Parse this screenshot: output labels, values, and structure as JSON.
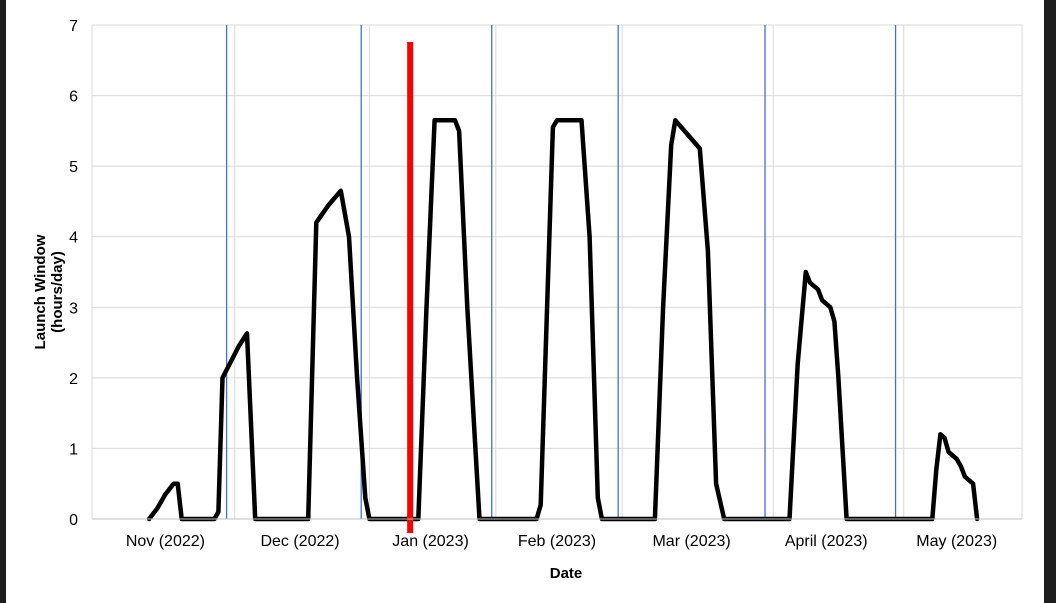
{
  "chart_data": {
    "type": "line",
    "title": "",
    "xlabel": "Date",
    "ylabel": "Launch Window (hours/day)",
    "ylim": [
      0,
      7
    ],
    "yticks": [
      0,
      1,
      2,
      3,
      4,
      5,
      6,
      7
    ],
    "grid": true,
    "xlim": [
      "2022-10-15",
      "2023-05-31"
    ],
    "categories": [
      "Nov (2022)",
      "Dec (2022)",
      "Jan (2023)",
      "Feb (2023)",
      "Mar (2023)",
      "April (2023)",
      "May (2023)"
    ],
    "category_centers": [
      "2022-11-02",
      "2022-12-05",
      "2023-01-06",
      "2023-02-06",
      "2023-03-11",
      "2023-04-13",
      "2023-05-15"
    ],
    "category_gridlines": [
      "2022-11-19",
      "2022-12-22",
      "2023-01-22",
      "2023-02-22",
      "2023-03-31",
      "2023-05-02"
    ],
    "vertical_markers": [
      "2022-11-17",
      "2022-12-20",
      "2023-01-21",
      "2023-02-21",
      "2023-03-29",
      "2023-04-30"
    ],
    "highlight_line": {
      "x": "2023-01-01",
      "color": "#ff0000"
    },
    "series": [
      {
        "name": "",
        "color": "#000000",
        "points": [
          [
            "2022-10-29",
            0
          ],
          [
            "2022-10-31",
            0.15
          ],
          [
            "2022-11-02",
            0.35
          ],
          [
            "2022-11-04",
            0.5
          ],
          [
            "2022-11-05",
            0.5
          ],
          [
            "2022-11-06",
            0
          ],
          [
            "2022-11-14",
            0
          ],
          [
            "2022-11-15",
            0.1
          ],
          [
            "2022-11-16",
            2.0
          ],
          [
            "2022-11-20",
            2.45
          ],
          [
            "2022-11-22",
            2.63
          ],
          [
            "2022-11-24",
            0
          ],
          [
            "2022-12-07",
            0
          ],
          [
            "2022-12-09",
            4.2
          ],
          [
            "2022-12-12",
            4.45
          ],
          [
            "2022-12-15",
            4.65
          ],
          [
            "2022-12-17",
            4.0
          ],
          [
            "2022-12-19",
            2.0
          ],
          [
            "2022-12-21",
            0.3
          ],
          [
            "2022-12-22",
            0
          ],
          [
            "2023-01-03",
            0
          ],
          [
            "2023-01-05",
            3.0
          ],
          [
            "2023-01-07",
            5.65
          ],
          [
            "2023-01-12",
            5.65
          ],
          [
            "2023-01-13",
            5.5
          ],
          [
            "2023-01-15",
            3.0
          ],
          [
            "2023-01-17",
            1.0
          ],
          [
            "2023-01-18",
            0
          ],
          [
            "2023-02-01",
            0
          ],
          [
            "2023-02-02",
            0.2
          ],
          [
            "2023-02-05",
            5.55
          ],
          [
            "2023-02-06",
            5.65
          ],
          [
            "2023-02-12",
            5.65
          ],
          [
            "2023-02-14",
            4.0
          ],
          [
            "2023-02-16",
            0.3
          ],
          [
            "2023-02-17",
            0
          ],
          [
            "2023-03-02",
            0
          ],
          [
            "2023-03-04",
            3.0
          ],
          [
            "2023-03-06",
            5.3
          ],
          [
            "2023-03-07",
            5.65
          ],
          [
            "2023-03-10",
            5.45
          ],
          [
            "2023-03-13",
            5.25
          ],
          [
            "2023-03-15",
            3.8
          ],
          [
            "2023-03-17",
            0.5
          ],
          [
            "2023-03-19",
            0
          ],
          [
            "2023-04-04",
            0
          ],
          [
            "2023-04-06",
            2.2
          ],
          [
            "2023-04-08",
            3.5
          ],
          [
            "2023-04-09",
            3.35
          ],
          [
            "2023-04-11",
            3.25
          ],
          [
            "2023-04-12",
            3.1
          ],
          [
            "2023-04-14",
            3.0
          ],
          [
            "2023-04-15",
            2.8
          ],
          [
            "2023-04-16",
            2.0
          ],
          [
            "2023-04-18",
            0
          ],
          [
            "2023-05-09",
            0
          ],
          [
            "2023-05-10",
            0.7
          ],
          [
            "2023-05-11",
            1.2
          ],
          [
            "2023-05-12",
            1.15
          ],
          [
            "2023-05-13",
            0.95
          ],
          [
            "2023-05-15",
            0.85
          ],
          [
            "2023-05-16",
            0.75
          ],
          [
            "2023-05-17",
            0.6
          ],
          [
            "2023-05-19",
            0.5
          ],
          [
            "2023-05-20",
            0
          ]
        ]
      }
    ],
    "colors": {
      "grid": "#d9d9d9",
      "marker": "#4472c4"
    }
  }
}
